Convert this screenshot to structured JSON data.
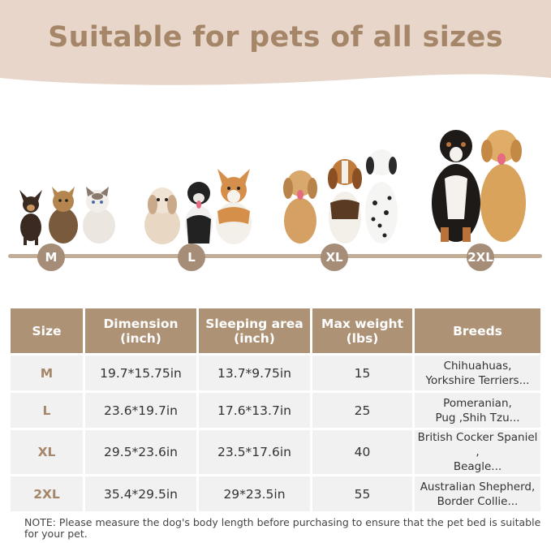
{
  "title": "Suitable for pets of all sizes",
  "colors": {
    "accent": "#a58669",
    "header_bg": "#ad9276",
    "banner_bg": "#e7d6c9",
    "row_bg": "#f1f1f1"
  },
  "scale_sizes": [
    "M",
    "L",
    "XL",
    "2XL"
  ],
  "table": {
    "headers": [
      "Size",
      "Dimension (inch)",
      "Sleeping area (inch)",
      "Max weight (lbs)",
      "Breeds"
    ],
    "rows": [
      {
        "size": "M",
        "dimension": "19.7*15.75in",
        "sleeping_area": "13.7*9.75in",
        "max_weight": "15",
        "breeds_line1": "Chihuahuas,",
        "breeds_line2": "Yorkshire Terriers..."
      },
      {
        "size": "L",
        "dimension": "23.6*19.7in",
        "sleeping_area": "17.6*13.7in",
        "max_weight": "25",
        "breeds_line1": "Pomeranian,",
        "breeds_line2": "Pug ,Shih Tzu..."
      },
      {
        "size": "XL",
        "dimension": "29.5*23.6in",
        "sleeping_area": "23.5*17.6in",
        "max_weight": "40",
        "breeds_line1": "British Cocker Spaniel ,",
        "breeds_line2": "Beagle..."
      },
      {
        "size": "2XL",
        "dimension": "35.4*29.5in",
        "sleeping_area": "29*23.5in",
        "max_weight": "55",
        "breeds_line1": "Australian Shepherd,",
        "breeds_line2": "Border Collie..."
      }
    ]
  },
  "note": "NOTE: Please measure the dog's body length before purchasing to ensure that the pet bed is suitable for your pet."
}
